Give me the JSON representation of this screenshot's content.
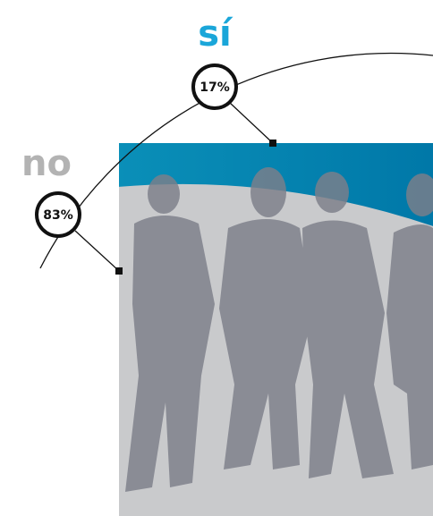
{
  "chart_data": {
    "type": "pie",
    "categories": [
      "sí",
      "no"
    ],
    "values": [
      17,
      83
    ],
    "value_labels": [
      "17%",
      "83%"
    ],
    "colors": [
      "#1aa6d9",
      "#c9cacc"
    ],
    "label_colors": [
      "#1aa6d9",
      "#b3b3b3"
    ]
  }
}
